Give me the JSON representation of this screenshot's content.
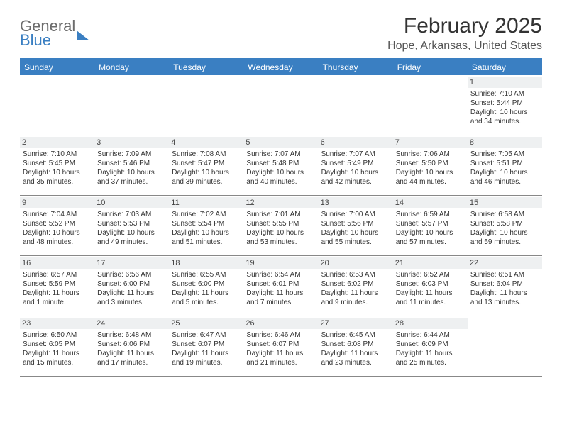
{
  "brand": {
    "line1": "General",
    "line2": "Blue"
  },
  "title": "February 2025",
  "location": "Hope, Arkansas, United States",
  "colors": {
    "header_bar": "#3a7fc2",
    "daynum_bg": "#eef0f1",
    "text": "#333333",
    "background": "#ffffff"
  },
  "weekdays": [
    "Sunday",
    "Monday",
    "Tuesday",
    "Wednesday",
    "Thursday",
    "Friday",
    "Saturday"
  ],
  "weeks": [
    [
      {
        "n": "",
        "sunrise": "",
        "sunset": "",
        "daylight": ""
      },
      {
        "n": "",
        "sunrise": "",
        "sunset": "",
        "daylight": ""
      },
      {
        "n": "",
        "sunrise": "",
        "sunset": "",
        "daylight": ""
      },
      {
        "n": "",
        "sunrise": "",
        "sunset": "",
        "daylight": ""
      },
      {
        "n": "",
        "sunrise": "",
        "sunset": "",
        "daylight": ""
      },
      {
        "n": "",
        "sunrise": "",
        "sunset": "",
        "daylight": ""
      },
      {
        "n": "1",
        "sunrise": "Sunrise: 7:10 AM",
        "sunset": "Sunset: 5:44 PM",
        "daylight": "Daylight: 10 hours and 34 minutes."
      }
    ],
    [
      {
        "n": "2",
        "sunrise": "Sunrise: 7:10 AM",
        "sunset": "Sunset: 5:45 PM",
        "daylight": "Daylight: 10 hours and 35 minutes."
      },
      {
        "n": "3",
        "sunrise": "Sunrise: 7:09 AM",
        "sunset": "Sunset: 5:46 PM",
        "daylight": "Daylight: 10 hours and 37 minutes."
      },
      {
        "n": "4",
        "sunrise": "Sunrise: 7:08 AM",
        "sunset": "Sunset: 5:47 PM",
        "daylight": "Daylight: 10 hours and 39 minutes."
      },
      {
        "n": "5",
        "sunrise": "Sunrise: 7:07 AM",
        "sunset": "Sunset: 5:48 PM",
        "daylight": "Daylight: 10 hours and 40 minutes."
      },
      {
        "n": "6",
        "sunrise": "Sunrise: 7:07 AM",
        "sunset": "Sunset: 5:49 PM",
        "daylight": "Daylight: 10 hours and 42 minutes."
      },
      {
        "n": "7",
        "sunrise": "Sunrise: 7:06 AM",
        "sunset": "Sunset: 5:50 PM",
        "daylight": "Daylight: 10 hours and 44 minutes."
      },
      {
        "n": "8",
        "sunrise": "Sunrise: 7:05 AM",
        "sunset": "Sunset: 5:51 PM",
        "daylight": "Daylight: 10 hours and 46 minutes."
      }
    ],
    [
      {
        "n": "9",
        "sunrise": "Sunrise: 7:04 AM",
        "sunset": "Sunset: 5:52 PM",
        "daylight": "Daylight: 10 hours and 48 minutes."
      },
      {
        "n": "10",
        "sunrise": "Sunrise: 7:03 AM",
        "sunset": "Sunset: 5:53 PM",
        "daylight": "Daylight: 10 hours and 49 minutes."
      },
      {
        "n": "11",
        "sunrise": "Sunrise: 7:02 AM",
        "sunset": "Sunset: 5:54 PM",
        "daylight": "Daylight: 10 hours and 51 minutes."
      },
      {
        "n": "12",
        "sunrise": "Sunrise: 7:01 AM",
        "sunset": "Sunset: 5:55 PM",
        "daylight": "Daylight: 10 hours and 53 minutes."
      },
      {
        "n": "13",
        "sunrise": "Sunrise: 7:00 AM",
        "sunset": "Sunset: 5:56 PM",
        "daylight": "Daylight: 10 hours and 55 minutes."
      },
      {
        "n": "14",
        "sunrise": "Sunrise: 6:59 AM",
        "sunset": "Sunset: 5:57 PM",
        "daylight": "Daylight: 10 hours and 57 minutes."
      },
      {
        "n": "15",
        "sunrise": "Sunrise: 6:58 AM",
        "sunset": "Sunset: 5:58 PM",
        "daylight": "Daylight: 10 hours and 59 minutes."
      }
    ],
    [
      {
        "n": "16",
        "sunrise": "Sunrise: 6:57 AM",
        "sunset": "Sunset: 5:59 PM",
        "daylight": "Daylight: 11 hours and 1 minute."
      },
      {
        "n": "17",
        "sunrise": "Sunrise: 6:56 AM",
        "sunset": "Sunset: 6:00 PM",
        "daylight": "Daylight: 11 hours and 3 minutes."
      },
      {
        "n": "18",
        "sunrise": "Sunrise: 6:55 AM",
        "sunset": "Sunset: 6:00 PM",
        "daylight": "Daylight: 11 hours and 5 minutes."
      },
      {
        "n": "19",
        "sunrise": "Sunrise: 6:54 AM",
        "sunset": "Sunset: 6:01 PM",
        "daylight": "Daylight: 11 hours and 7 minutes."
      },
      {
        "n": "20",
        "sunrise": "Sunrise: 6:53 AM",
        "sunset": "Sunset: 6:02 PM",
        "daylight": "Daylight: 11 hours and 9 minutes."
      },
      {
        "n": "21",
        "sunrise": "Sunrise: 6:52 AM",
        "sunset": "Sunset: 6:03 PM",
        "daylight": "Daylight: 11 hours and 11 minutes."
      },
      {
        "n": "22",
        "sunrise": "Sunrise: 6:51 AM",
        "sunset": "Sunset: 6:04 PM",
        "daylight": "Daylight: 11 hours and 13 minutes."
      }
    ],
    [
      {
        "n": "23",
        "sunrise": "Sunrise: 6:50 AM",
        "sunset": "Sunset: 6:05 PM",
        "daylight": "Daylight: 11 hours and 15 minutes."
      },
      {
        "n": "24",
        "sunrise": "Sunrise: 6:48 AM",
        "sunset": "Sunset: 6:06 PM",
        "daylight": "Daylight: 11 hours and 17 minutes."
      },
      {
        "n": "25",
        "sunrise": "Sunrise: 6:47 AM",
        "sunset": "Sunset: 6:07 PM",
        "daylight": "Daylight: 11 hours and 19 minutes."
      },
      {
        "n": "26",
        "sunrise": "Sunrise: 6:46 AM",
        "sunset": "Sunset: 6:07 PM",
        "daylight": "Daylight: 11 hours and 21 minutes."
      },
      {
        "n": "27",
        "sunrise": "Sunrise: 6:45 AM",
        "sunset": "Sunset: 6:08 PM",
        "daylight": "Daylight: 11 hours and 23 minutes."
      },
      {
        "n": "28",
        "sunrise": "Sunrise: 6:44 AM",
        "sunset": "Sunset: 6:09 PM",
        "daylight": "Daylight: 11 hours and 25 minutes."
      },
      {
        "n": "",
        "sunrise": "",
        "sunset": "",
        "daylight": ""
      }
    ]
  ]
}
